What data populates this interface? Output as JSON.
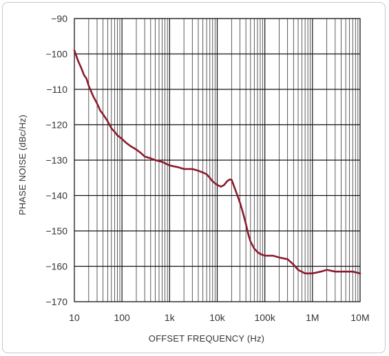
{
  "chart_data": {
    "type": "line",
    "title": "",
    "xlabel": "OFFSET FREQUENCY (Hz)",
    "ylabel": "PHASE NOISE (dBc/Hz)",
    "x_scale": "log",
    "xlim": [
      10,
      10000000
    ],
    "ylim": [
      -170,
      -90
    ],
    "grid": true,
    "legend": "none",
    "x_ticks": [
      10,
      100,
      1000,
      10000,
      100000,
      1000000,
      10000000
    ],
    "x_tick_labels": [
      "10",
      "100",
      "1k",
      "10k",
      "100k",
      "1M",
      "10M"
    ],
    "y_ticks": [
      -90,
      -100,
      -110,
      -120,
      -130,
      -140,
      -150,
      -160,
      -170
    ],
    "y_tick_labels": [
      "−90",
      "−100",
      "−110",
      "−120",
      "−130",
      "−140",
      "−150",
      "−160",
      "−170"
    ],
    "series_color": "#8b1a2b",
    "series": [
      {
        "x": [
          10,
          12,
          14,
          16,
          18,
          20,
          25,
          30,
          35,
          40,
          50,
          60,
          70,
          80,
          100,
          120,
          150,
          200,
          250,
          300,
          400,
          500,
          700,
          1000,
          1500,
          2000,
          3000,
          4000,
          5000,
          6000,
          7000,
          8000,
          10000,
          12000,
          14000,
          16000,
          18000,
          20000,
          22000,
          25000,
          30000,
          35000,
          40000,
          45000,
          50000,
          60000,
          70000,
          80000,
          100000,
          150000,
          200000,
          300000,
          400000,
          500000,
          700000,
          1000000,
          1500000,
          2000000,
          3000000,
          5000000,
          7000000,
          10000000
        ],
        "y": [
          -99,
          -102,
          -104,
          -106,
          -107,
          -109,
          -112,
          -114,
          -116,
          -117,
          -119,
          -121,
          -122,
          -123,
          -124,
          -125,
          -126,
          -127,
          -128,
          -129,
          -129.5,
          -130,
          -130.5,
          -131.5,
          -132,
          -132.5,
          -132.5,
          -133,
          -133.5,
          -134,
          -135,
          -136,
          -137,
          -137.5,
          -137,
          -136,
          -135.5,
          -135.5,
          -137,
          -139,
          -142,
          -145,
          -148,
          -151,
          -153,
          -155,
          -156,
          -156.5,
          -157,
          -157,
          -157.5,
          -158,
          -159.5,
          -161,
          -162,
          -162,
          -161.5,
          -161,
          -161.5,
          -161.5,
          -161.5,
          -162
        ]
      }
    ]
  }
}
